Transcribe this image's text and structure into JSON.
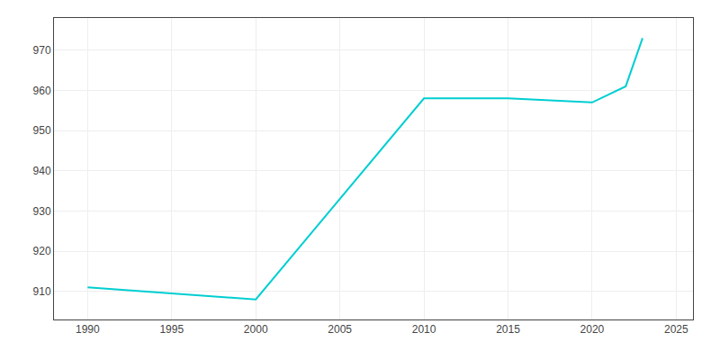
{
  "chart_data": {
    "type": "line",
    "x": [
      1990,
      2000,
      2010,
      2015,
      2020,
      2022,
      2023
    ],
    "values": [
      911,
      908,
      958,
      958,
      957,
      961,
      973
    ],
    "color": "#00CED1",
    "xlim": [
      1988,
      2026
    ],
    "ylim": [
      903,
      978
    ],
    "xticks": [
      1990,
      1995,
      2000,
      2005,
      2010,
      2015,
      2020,
      2025
    ],
    "yticks": [
      910,
      920,
      930,
      940,
      950,
      960,
      970
    ],
    "grid": true
  }
}
